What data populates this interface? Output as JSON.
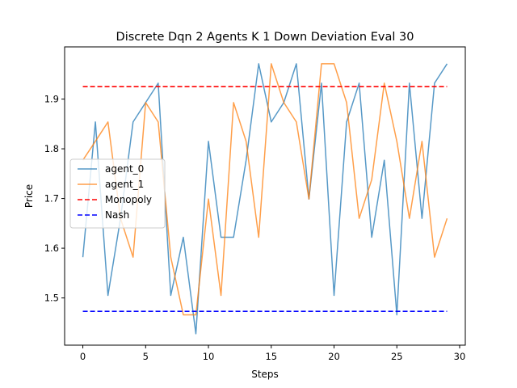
{
  "chart_data": {
    "type": "line",
    "title": "Discrete Dqn 2 Agents K 1 Down Deviation Eval 30",
    "xlabel": "Steps",
    "ylabel": "Price",
    "xlim": [
      -1.45,
      30.45
    ],
    "ylim": [
      1.405,
      2.005
    ],
    "xticks": [
      0,
      5,
      10,
      15,
      20,
      25,
      30
    ],
    "yticks": [
      1.5,
      1.6,
      1.7,
      1.8,
      1.9
    ],
    "grid": false,
    "legend_position": "center-left",
    "x": [
      0,
      1,
      2,
      3,
      4,
      5,
      6,
      7,
      8,
      9,
      10,
      11,
      12,
      13,
      14,
      15,
      16,
      17,
      18,
      19,
      20,
      21,
      22,
      23,
      24,
      25,
      26,
      27,
      28,
      29
    ],
    "series": [
      {
        "name": "agent_0",
        "color": "#1f77b4",
        "style": "solid",
        "values": [
          1.582,
          1.854,
          1.505,
          1.66,
          1.854,
          1.893,
          1.932,
          1.505,
          1.622,
          1.428,
          1.815,
          1.622,
          1.622,
          1.777,
          1.971,
          1.854,
          1.893,
          1.971,
          1.699,
          1.932,
          1.505,
          1.854,
          1.932,
          1.622,
          1.777,
          1.466,
          1.932,
          1.66,
          1.932,
          1.971
        ]
      },
      {
        "name": "agent_1",
        "color": "#ff7f0e",
        "style": "solid",
        "values": [
          1.777,
          1.815,
          1.854,
          1.66,
          1.582,
          1.893,
          1.854,
          1.582,
          1.466,
          1.466,
          1.699,
          1.505,
          1.893,
          1.815,
          1.622,
          1.971,
          1.893,
          1.854,
          1.699,
          1.971,
          1.971,
          1.893,
          1.66,
          1.738,
          1.932,
          1.815,
          1.66,
          1.815,
          1.582,
          1.66
        ]
      },
      {
        "name": "Monopoly",
        "color": "#ff0000",
        "style": "dashed",
        "values": [
          1.925,
          1.925,
          1.925,
          1.925,
          1.925,
          1.925,
          1.925,
          1.925,
          1.925,
          1.925,
          1.925,
          1.925,
          1.925,
          1.925,
          1.925,
          1.925,
          1.925,
          1.925,
          1.925,
          1.925,
          1.925,
          1.925,
          1.925,
          1.925,
          1.925,
          1.925,
          1.925,
          1.925,
          1.925,
          1.925
        ]
      },
      {
        "name": "Nash",
        "color": "#0000ff",
        "style": "dashed",
        "values": [
          1.473,
          1.473,
          1.473,
          1.473,
          1.473,
          1.473,
          1.473,
          1.473,
          1.473,
          1.473,
          1.473,
          1.473,
          1.473,
          1.473,
          1.473,
          1.473,
          1.473,
          1.473,
          1.473,
          1.473,
          1.473,
          1.473,
          1.473,
          1.473,
          1.473,
          1.473,
          1.473,
          1.473,
          1.473,
          1.473
        ]
      }
    ]
  }
}
